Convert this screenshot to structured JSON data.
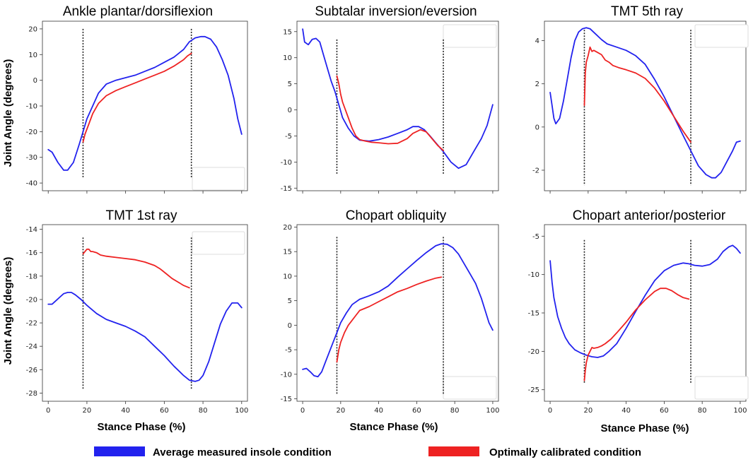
{
  "figure": {
    "y_axis_label": "Joint Angle (degrees)",
    "x_axis_label": "Stance Phase (%)"
  },
  "legend": {
    "items": [
      {
        "label": "Average measured insole condition",
        "color": "#2222ee"
      },
      {
        "label": "Optimally calibrated condition",
        "color": "#ee2222"
      }
    ]
  },
  "chart_data": [
    {
      "type": "line",
      "title": "Ankle plantar/dorsiflexion",
      "xlabel": "",
      "ylabel": "Joint Angle (degrees)",
      "xlim": [
        -3,
        103
      ],
      "ylim": [
        -43,
        23
      ],
      "yticks": [
        20,
        10,
        0,
        -10,
        -20,
        -30,
        -40
      ],
      "xticks": [],
      "vlines": [
        18,
        74
      ],
      "vline_range": [
        -38,
        20
      ],
      "series": [
        {
          "name": "Average measured insole condition",
          "color": "#2222ee",
          "x": [
            0,
            2,
            5,
            8,
            10,
            13,
            16,
            18,
            20,
            23,
            26,
            30,
            35,
            40,
            45,
            50,
            55,
            60,
            65,
            70,
            73,
            76,
            79,
            81,
            84,
            87,
            90,
            93,
            96,
            98,
            100
          ],
          "y": [
            -27,
            -28,
            -32,
            -35,
            -35,
            -32,
            -25,
            -20,
            -15,
            -10,
            -5,
            -1.5,
            0,
            1,
            2,
            3.5,
            5,
            7,
            9,
            12,
            15,
            16.5,
            17,
            17,
            16,
            13,
            8,
            2,
            -7,
            -15,
            -21
          ]
        },
        {
          "name": "Optimally calibrated condition",
          "color": "#ee2222",
          "x": [
            18,
            19,
            21,
            23,
            26,
            30,
            35,
            40,
            45,
            50,
            55,
            60,
            65,
            70,
            72,
            74
          ],
          "y": [
            -24,
            -21,
            -17,
            -13,
            -9,
            -6,
            -4,
            -2.5,
            -1,
            0.5,
            2,
            3.5,
            5.5,
            8,
            9.5,
            10.5
          ]
        }
      ]
    },
    {
      "type": "line",
      "title": "Subtalar inversion/eversion",
      "xlabel": "",
      "ylabel": "",
      "xlim": [
        -3,
        103
      ],
      "ylim": [
        -15.5,
        17
      ],
      "yticks": [
        15,
        10,
        5,
        0,
        -5,
        -10,
        -15
      ],
      "xticks": [],
      "vlines": [
        18,
        74
      ],
      "vline_range": [
        -12.5,
        13.5
      ],
      "series": [
        {
          "name": "Average measured insole condition",
          "color": "#2222ee",
          "x": [
            0,
            1,
            3,
            5,
            7,
            9,
            11,
            13,
            15,
            17,
            19,
            21,
            24,
            27,
            30,
            35,
            40,
            45,
            50,
            55,
            58,
            61,
            64,
            67,
            70,
            74,
            78,
            82,
            86,
            90,
            94,
            97,
            100
          ],
          "y": [
            15.5,
            13,
            12.5,
            13.5,
            13.7,
            13,
            10.5,
            8,
            5.5,
            3.5,
            1,
            -1.5,
            -3.5,
            -5,
            -5.8,
            -6,
            -5.7,
            -5.2,
            -4.5,
            -3.8,
            -3.2,
            -3.2,
            -3.8,
            -5,
            -6.3,
            -8,
            -10,
            -11.2,
            -10.5,
            -8,
            -5.5,
            -3,
            1
          ]
        },
        {
          "name": "Optimally calibrated condition",
          "color": "#ee2222",
          "x": [
            18,
            19,
            20,
            21,
            22,
            23,
            24,
            26,
            28,
            30,
            33,
            36,
            40,
            45,
            50,
            55,
            58,
            62,
            65,
            68,
            71,
            74
          ],
          "y": [
            6.5,
            5,
            3,
            1.5,
            0.5,
            -0.5,
            -1.5,
            -3.5,
            -5,
            -5.7,
            -6,
            -6.2,
            -6.3,
            -6.5,
            -6.4,
            -5.5,
            -4.5,
            -3.8,
            -4.2,
            -5.5,
            -6.8,
            -7.8
          ]
        }
      ]
    },
    {
      "type": "line",
      "title": "TMT 5th ray",
      "xlabel": "",
      "ylabel": "",
      "xlim": [
        -3,
        103
      ],
      "ylim": [
        -2.95,
        4.9
      ],
      "yticks": [
        4,
        2,
        0,
        -2
      ],
      "xticks": [],
      "vlines": [
        18,
        74
      ],
      "vline_range": [
        -2.7,
        4.5
      ],
      "series": [
        {
          "name": "Average measured insole condition",
          "color": "#2222ee",
          "x": [
            0,
            1,
            2,
            3,
            5,
            7,
            9,
            11,
            13,
            15,
            17,
            19,
            21,
            24,
            27,
            30,
            35,
            40,
            45,
            50,
            55,
            60,
            65,
            70,
            74,
            78,
            82,
            85,
            87,
            90,
            93,
            96,
            98,
            100
          ],
          "y": [
            1.6,
            1,
            0.4,
            0.15,
            0.4,
            1.2,
            2.2,
            3.2,
            4,
            4.4,
            4.55,
            4.6,
            4.55,
            4.3,
            4.05,
            3.85,
            3.7,
            3.55,
            3.3,
            2.9,
            2.2,
            1.4,
            0.5,
            -0.4,
            -1.1,
            -1.8,
            -2.2,
            -2.35,
            -2.35,
            -2.1,
            -1.6,
            -1.1,
            -0.7,
            -0.65
          ]
        },
        {
          "name": "Optimally calibrated condition",
          "color": "#ee2222",
          "x": [
            18,
            18.5,
            19,
            20,
            21,
            22,
            23,
            25,
            27,
            29,
            31,
            33,
            36,
            40,
            45,
            50,
            55,
            60,
            65,
            70,
            74
          ],
          "y": [
            1,
            2.5,
            3.0,
            3.3,
            3.7,
            3.5,
            3.55,
            3.45,
            3.35,
            3.1,
            3.0,
            2.85,
            2.75,
            2.65,
            2.5,
            2.25,
            1.8,
            1.2,
            0.5,
            -0.2,
            -0.7
          ]
        }
      ]
    },
    {
      "type": "line",
      "title": "TMT 1st  ray",
      "xlabel": "Stance Phase (%)",
      "ylabel": "Joint Angle (degrees)",
      "xlim": [
        -3,
        103
      ],
      "ylim": [
        -28.7,
        -13.6
      ],
      "yticks": [
        -14,
        -16,
        -18,
        -20,
        -22,
        -24,
        -26,
        -28
      ],
      "xticks": [
        0,
        20,
        40,
        60,
        80,
        100
      ],
      "vlines": [
        18,
        74
      ],
      "vline_range": [
        -27.7,
        -14.7
      ],
      "series": [
        {
          "name": "Average measured insole condition",
          "color": "#2222ee",
          "x": [
            0,
            2,
            4,
            6,
            8,
            10,
            12,
            14,
            17,
            20,
            25,
            30,
            35,
            40,
            45,
            50,
            55,
            60,
            65,
            70,
            73,
            76,
            78,
            80,
            83,
            86,
            89,
            92,
            95,
            98,
            100
          ],
          "y": [
            -20.4,
            -20.4,
            -20.1,
            -19.8,
            -19.5,
            -19.4,
            -19.4,
            -19.6,
            -20,
            -20.5,
            -21.2,
            -21.7,
            -22,
            -22.3,
            -22.7,
            -23.2,
            -24,
            -24.8,
            -25.7,
            -26.5,
            -26.9,
            -27,
            -26.9,
            -26.5,
            -25.3,
            -23.7,
            -22.1,
            -21,
            -20.3,
            -20.3,
            -20.7
          ]
        },
        {
          "name": "Optimally calibrated condition",
          "color": "#ee2222",
          "x": [
            18,
            19,
            20,
            21,
            22,
            23,
            25,
            27,
            30,
            35,
            40,
            45,
            50,
            55,
            58,
            61,
            64,
            67,
            70,
            73
          ],
          "y": [
            -16.1,
            -15.9,
            -15.7,
            -15.7,
            -15.9,
            -15.9,
            -16,
            -16.2,
            -16.3,
            -16.4,
            -16.5,
            -16.6,
            -16.8,
            -17.1,
            -17.4,
            -17.8,
            -18.2,
            -18.5,
            -18.8,
            -19
          ]
        }
      ]
    },
    {
      "type": "line",
      "title": "Chopart obliquity",
      "xlabel": "Stance Phase (%)",
      "ylabel": "",
      "xlim": [
        -3,
        103
      ],
      "ylim": [
        -15.5,
        20.5
      ],
      "yticks": [
        20,
        15,
        10,
        5,
        0,
        -5,
        -10,
        -15
      ],
      "xticks": [
        0,
        20,
        40,
        60,
        80,
        100
      ],
      "vlines": [
        18,
        74
      ],
      "vline_range": [
        -14,
        18
      ],
      "series": [
        {
          "name": "Average measured insole condition",
          "color": "#2222ee",
          "x": [
            0,
            2,
            4,
            6,
            8,
            10,
            12,
            15,
            18,
            20,
            23,
            26,
            30,
            35,
            40,
            45,
            50,
            55,
            60,
            65,
            70,
            73,
            76,
            79,
            82,
            85,
            88,
            91,
            94,
            96,
            98,
            100
          ],
          "y": [
            -9,
            -8.8,
            -9.5,
            -10.3,
            -10.5,
            -9.5,
            -7.5,
            -4.5,
            -1.5,
            0.5,
            2.5,
            4.2,
            5.3,
            6,
            6.8,
            8,
            9.8,
            11.5,
            13.2,
            14.8,
            16.2,
            16.6,
            16.5,
            15.8,
            14.5,
            12.5,
            10.5,
            8.5,
            5.5,
            3,
            0.5,
            -1
          ]
        },
        {
          "name": "Optimally calibrated condition",
          "color": "#ee2222",
          "x": [
            18,
            19,
            20,
            22,
            24,
            26,
            28,
            30,
            35,
            40,
            45,
            50,
            55,
            60,
            65,
            70,
            73
          ],
          "y": [
            -7.5,
            -5,
            -3.5,
            -1.5,
            0,
            1,
            2,
            3,
            3.8,
            4.8,
            5.8,
            6.8,
            7.5,
            8.3,
            9,
            9.6,
            9.8
          ]
        }
      ]
    },
    {
      "type": "line",
      "title": "Chopart anterior/posterior",
      "xlabel": "Stance Phase (%)",
      "ylabel": "",
      "xlim": [
        -3,
        103
      ],
      "ylim": [
        -26.5,
        -3.5
      ],
      "yticks": [
        -5,
        -10,
        -15,
        -20,
        -25
      ],
      "xticks": [
        0,
        20,
        40,
        60,
        80,
        100
      ],
      "vlines": [
        18,
        74
      ],
      "vline_range": [
        -24.2,
        -5.5
      ],
      "series": [
        {
          "name": "Average measured insole condition",
          "color": "#2222ee",
          "x": [
            0,
            1,
            2,
            4,
            6,
            8,
            10,
            13,
            16,
            19,
            22,
            25,
            28,
            31,
            35,
            40,
            45,
            50,
            55,
            60,
            65,
            70,
            73,
            76,
            80,
            84,
            88,
            91,
            94,
            96,
            98,
            100
          ],
          "y": [
            -8.2,
            -11,
            -13,
            -15.5,
            -17,
            -18.2,
            -19,
            -19.8,
            -20.2,
            -20.5,
            -20.7,
            -20.8,
            -20.6,
            -20,
            -19,
            -17,
            -14.8,
            -12.7,
            -10.8,
            -9.5,
            -8.8,
            -8.5,
            -8.6,
            -8.8,
            -8.9,
            -8.7,
            -8,
            -7,
            -6.4,
            -6.2,
            -6.6,
            -7.2
          ]
        },
        {
          "name": "Optimally calibrated condition",
          "color": "#ee2222",
          "x": [
            18,
            18.5,
            19,
            20,
            21,
            22,
            23,
            25,
            27,
            29,
            32,
            35,
            40,
            45,
            50,
            55,
            58,
            61,
            64,
            67,
            70,
            73
          ],
          "y": [
            -23.8,
            -22.5,
            -21.5,
            -20.5,
            -20,
            -19.5,
            -19.6,
            -19.5,
            -19.3,
            -19,
            -18.4,
            -17.6,
            -16.2,
            -14.6,
            -13.3,
            -12.2,
            -11.8,
            -11.8,
            -12.1,
            -12.6,
            -13,
            -13.2
          ]
        }
      ]
    }
  ]
}
